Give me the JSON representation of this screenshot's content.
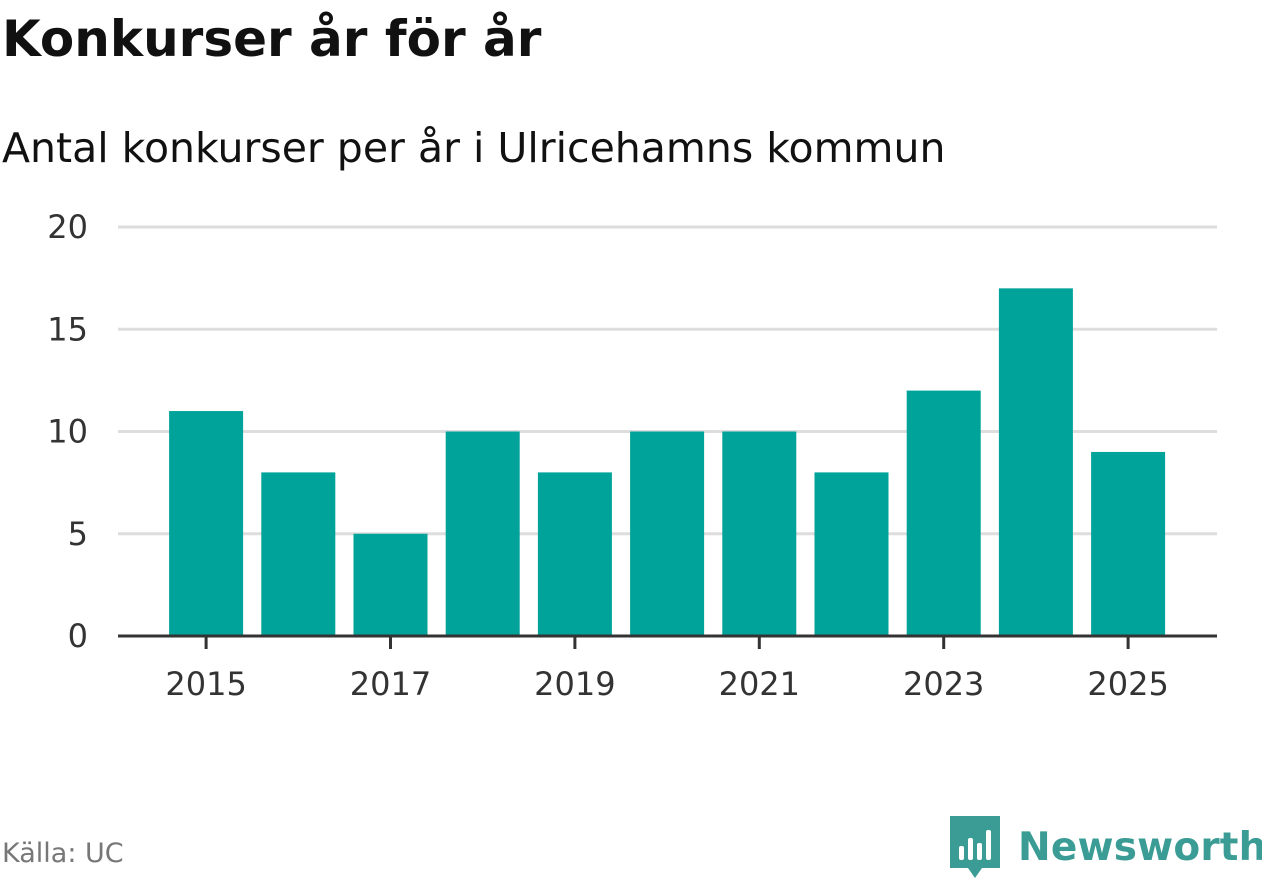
{
  "header": {
    "title": "Konkurser år för år",
    "subtitle": "Antal konkurser per år i Ulricehamns kommun"
  },
  "footer": {
    "source": "Källa: UC",
    "brand": "Newsworthy",
    "brand_icon": "newsworthy-logo-icon"
  },
  "colors": {
    "bar": "#00a39a",
    "grid": "#dddddd",
    "axis": "#333333",
    "brand": "#3a9c94"
  },
  "chart_data": {
    "type": "bar",
    "title": "Konkurser år för år",
    "subtitle": "Antal konkurser per år i Ulricehamns kommun",
    "xlabel": "",
    "ylabel": "",
    "categories": [
      2015,
      2016,
      2017,
      2018,
      2019,
      2020,
      2021,
      2022,
      2023,
      2024,
      2025
    ],
    "values": [
      11,
      8,
      5,
      10,
      8,
      10,
      10,
      8,
      12,
      17,
      9
    ],
    "ylim": [
      0,
      20
    ],
    "yticks": [
      0,
      5,
      10,
      15,
      20
    ],
    "xticks": [
      2015,
      2017,
      2019,
      2021,
      2023,
      2025
    ],
    "grid": true
  }
}
